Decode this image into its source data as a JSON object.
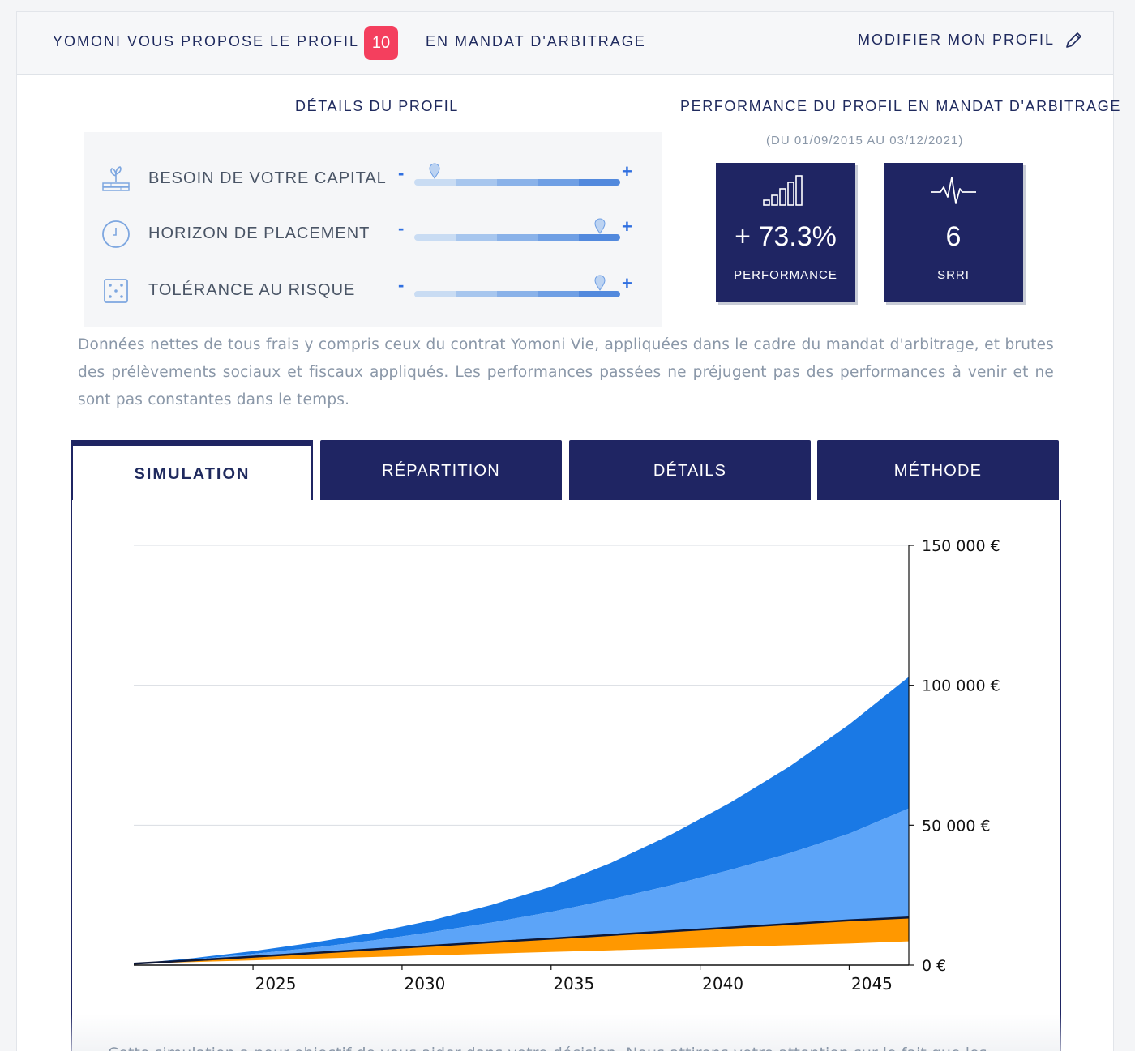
{
  "header": {
    "proposal_prefix": "YOMONI VOUS PROPOSE LE PROFIL",
    "profile_number": "10",
    "proposal_suffix": "EN MANDAT D'ARBITRAGE",
    "modify_label": "MODIFIER MON PROFIL"
  },
  "details": {
    "title": "DÉTAILS DU PROFIL",
    "rows": [
      {
        "label": "BESOIN DE VOTRE CAPITAL",
        "icon": "plant-icon",
        "level": 0.1
      },
      {
        "label": "HORIZON DE PLACEMENT",
        "icon": "clock-icon",
        "level": 0.9
      },
      {
        "label": "TOLÉRANCE AU RISQUE",
        "icon": "dice-icon",
        "level": 0.9
      }
    ],
    "minus": "-",
    "plus": "+"
  },
  "performance": {
    "title": "PERFORMANCE DU PROFIL EN MANDAT D'ARBITRAGE",
    "period": "(DU 01/09/2015 AU 03/12/2021)",
    "stats": [
      {
        "value": "+ 73.3%",
        "caption": "PERFORMANCE",
        "icon": "signal-bars-icon"
      },
      {
        "value": "6",
        "caption": "SRRI",
        "icon": "pulse-icon"
      }
    ]
  },
  "disclaimer": "Données nettes de tous frais y compris ceux du contrat Yomoni Vie, appliquées dans le cadre du mandat d'arbitrage, et brutes des prélèvements sociaux et fiscaux appliqués. Les performances passées ne préjugent pas des performances à venir et ne sont pas constantes dans le temps.",
  "tabs": [
    {
      "label": "SIMULATION",
      "active": true
    },
    {
      "label": "RÉPARTITION",
      "active": false
    },
    {
      "label": "DÉTAILS",
      "active": false
    },
    {
      "label": "MÉTHODE",
      "active": false
    }
  ],
  "colors": {
    "navy": "#1f2563",
    "badge": "#f43f5e",
    "blue_dark": "#1a79e5",
    "blue_light": "#5ca4f8",
    "orange": "#ff9800",
    "line": "#0d1838"
  },
  "chart_data": {
    "type": "area",
    "x": [
      2021,
      2023,
      2025,
      2027,
      2029,
      2031,
      2033,
      2035,
      2037,
      2039,
      2041,
      2043,
      2045,
      2047
    ],
    "xticks": [
      "2025",
      "2030",
      "2035",
      "2040",
      "2045"
    ],
    "xtick_values": [
      2025,
      2030,
      2035,
      2040,
      2045
    ],
    "yticks": [
      "0 €",
      "50 000 €",
      "100 000 €",
      "150 000 €"
    ],
    "ytick_values": [
      0,
      50000,
      100000,
      150000
    ],
    "xlim": [
      2021,
      2047
    ],
    "ylim": [
      0,
      150000
    ],
    "grid": true,
    "y_axis_side": "right",
    "series": [
      {
        "values": [
          500,
          2500,
          5000,
          8000,
          11500,
          16000,
          21500,
          28000,
          36500,
          46500,
          58000,
          71000,
          86000,
          103000
        ]
      },
      {
        "values": [
          500,
          2000,
          4000,
          6200,
          8800,
          11800,
          15200,
          19000,
          23500,
          28500,
          34000,
          40000,
          47000,
          56000
        ]
      },
      {
        "values": [
          500,
          1700,
          3000,
          4300,
          5600,
          6900,
          8200,
          9500,
          10800,
          12100,
          13400,
          14700,
          16000,
          17000
        ]
      },
      {
        "values": [
          500,
          1100,
          1700,
          2300,
          2900,
          3500,
          4100,
          4700,
          5300,
          5900,
          6500,
          7100,
          7700,
          8500
        ]
      }
    ],
    "median_line": [
      500,
      1700,
      3000,
      4300,
      5600,
      6900,
      8200,
      9500,
      10800,
      12100,
      13400,
      14700,
      16000,
      17000
    ]
  },
  "footer_text": "Cette simulation a pour objectif de vous aider dans votre décision. Nous attirons votre attention sur le fait que les"
}
